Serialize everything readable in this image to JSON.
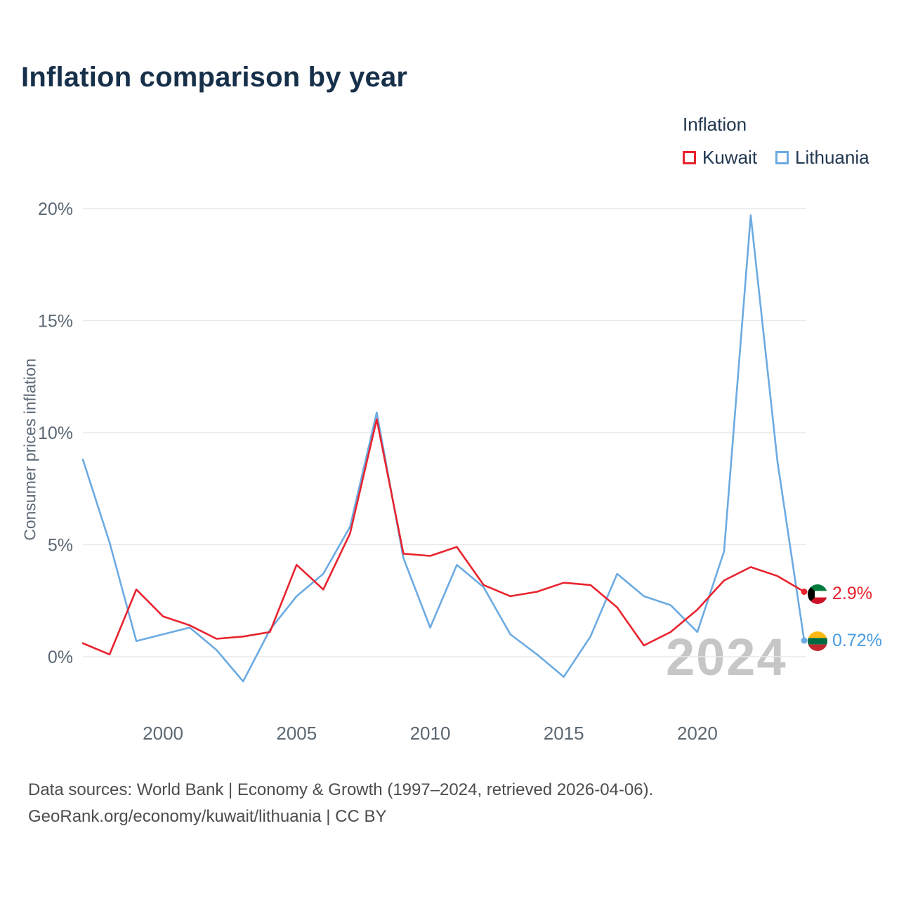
{
  "title": "Inflation comparison by year",
  "legend": {
    "title": "Inflation",
    "position": "top-right",
    "items": [
      {
        "label": "Kuwait",
        "color": "#e8232e"
      },
      {
        "label": "Lithuania",
        "color": "#6cabe2"
      }
    ]
  },
  "watermark": "2024",
  "end_labels": {
    "kuwait": "2.9%",
    "lithuania": "0.72%"
  },
  "footer": {
    "line1": "Data sources: World Bank | Economy & Growth (1997–2024, retrieved 2026-04-06).",
    "line2": "GeoRank.org/economy/kuwait/lithuania | CC BY"
  },
  "chart_data": {
    "type": "line",
    "title": "Inflation comparison by year",
    "xlabel": "",
    "ylabel": "Consumer prices inflation",
    "grid": "horizontal",
    "legend_position": "top-right",
    "ylim": [
      -2.5,
      21
    ],
    "yticks": [
      0,
      5,
      10,
      15,
      20
    ],
    "ytick_labels": [
      "0%",
      "5%",
      "10%",
      "15%",
      "20%"
    ],
    "xticks": [
      2000,
      2005,
      2010,
      2015,
      2020
    ],
    "x": [
      1997,
      1998,
      1999,
      2000,
      2001,
      2002,
      2003,
      2004,
      2005,
      2006,
      2007,
      2008,
      2009,
      2010,
      2011,
      2012,
      2013,
      2014,
      2015,
      2016,
      2017,
      2018,
      2019,
      2020,
      2021,
      2022,
      2023,
      2024
    ],
    "series": [
      {
        "name": "Kuwait",
        "color": "#e8232e",
        "values": [
          0.6,
          0.1,
          3.0,
          1.8,
          1.4,
          0.8,
          0.9,
          1.1,
          4.1,
          3.0,
          5.5,
          10.6,
          4.6,
          4.5,
          4.9,
          3.2,
          2.7,
          2.9,
          3.3,
          3.2,
          2.2,
          0.5,
          1.1,
          2.1,
          3.4,
          4.0,
          3.6,
          2.9
        ]
      },
      {
        "name": "Lithuania",
        "color": "#6cabe2",
        "values": [
          8.8,
          5.1,
          0.7,
          1.0,
          1.3,
          0.3,
          -1.1,
          1.2,
          2.7,
          3.7,
          5.8,
          10.9,
          4.4,
          1.3,
          4.1,
          3.1,
          1.0,
          0.1,
          -0.9,
          0.9,
          3.7,
          2.7,
          2.3,
          1.1,
          4.7,
          19.7,
          8.7,
          0.72
        ]
      }
    ]
  }
}
